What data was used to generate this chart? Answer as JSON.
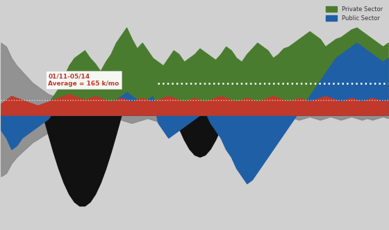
{
  "background_color": "#d0d0d0",
  "plot_bg_color": "#d0d0d0",
  "annotation_text": "01/11-05/14\nAverage = 165 k/mo",
  "legend_private": "Private Sector",
  "legend_public": "Public Sector",
  "colors": {
    "private": "#4a7c2f",
    "public": "#1f5fa6",
    "red": "#c0392b",
    "gray": "#888888",
    "black": "#111111",
    "white": "#ffffff"
  },
  "n_points": 75,
  "ylim": [
    -600,
    600
  ],
  "xlim": [
    0,
    74
  ]
}
